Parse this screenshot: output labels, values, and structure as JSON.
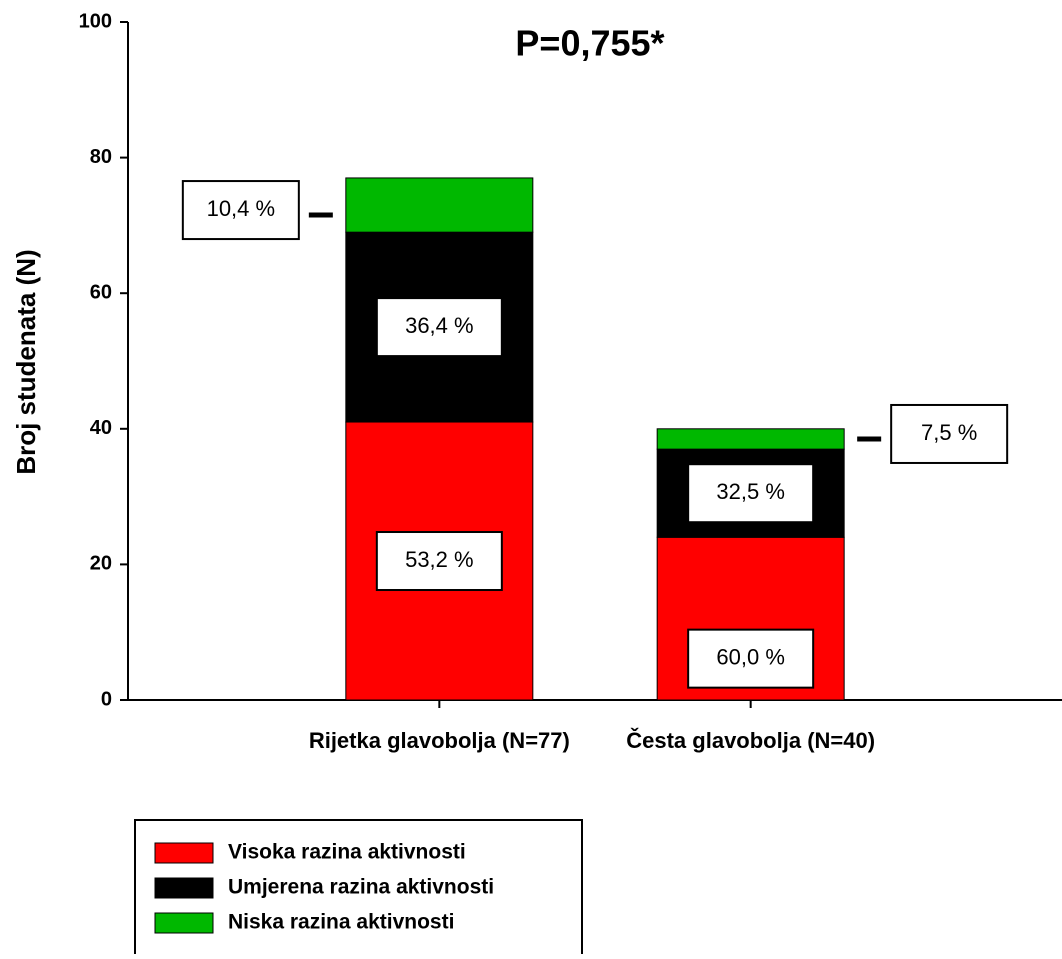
{
  "chart_data": {
    "type": "stacked_bar",
    "title": "P=0,755*",
    "y_label": "Broj studenata (N)",
    "categories": [
      "Rijetka glavobolja (N=77)",
      "Česta glavobolja (N=40)"
    ],
    "series": [
      {
        "name": "Visoka razina aktivnosti",
        "color": "#ff0000",
        "values": [
          41,
          24
        ],
        "labels": [
          "53,2 %",
          "60,0 %"
        ]
      },
      {
        "name": "Umjerena razina aktivnosti",
        "color": "#000000",
        "values": [
          28,
          13
        ],
        "labels": [
          "36,4 %",
          "32,5 %"
        ]
      },
      {
        "name": "Niska razina aktivnosti",
        "color": "#00b800",
        "values": [
          8,
          3
        ],
        "labels": [
          "10,4 %",
          "7,5 %"
        ]
      }
    ],
    "ylim": [
      0,
      100
    ],
    "yticks": [
      0,
      20,
      40,
      60,
      80,
      100
    ]
  }
}
